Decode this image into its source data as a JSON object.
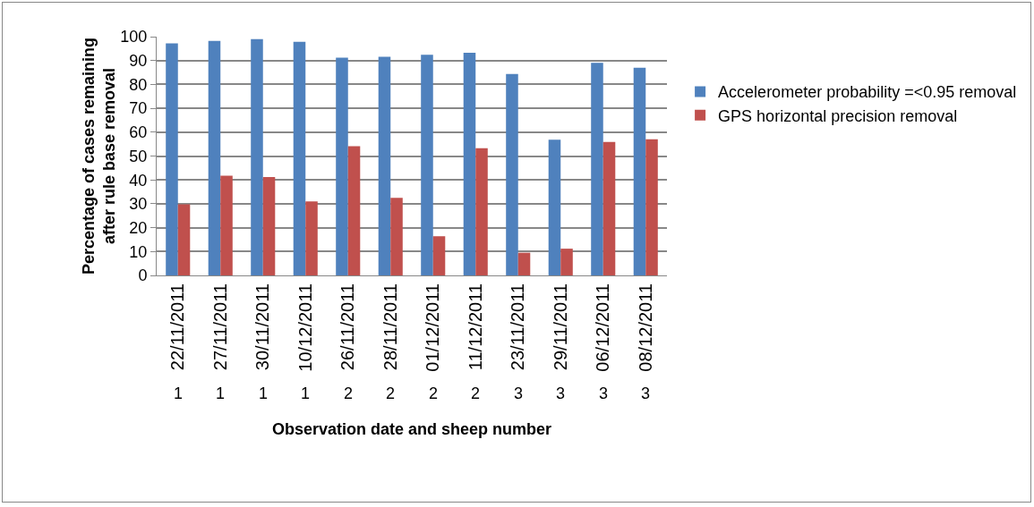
{
  "chart_data": {
    "type": "bar",
    "xlabel": "Observation date and sheep number",
    "ylabel": "Percentage of cases remaining after rule base removal",
    "categories": [
      "22/11/2011",
      "27/11/2011",
      "30/11/2011",
      "10/12/2011",
      "26/11/2011",
      "28/11/2011",
      "01/12/2011",
      "11/12/2011",
      "23/11/2011",
      "29/11/2011",
      "06/12/2011",
      "08/12/2011"
    ],
    "annotations": [
      "1",
      "1",
      "1",
      "1",
      "2",
      "2",
      "2",
      "2",
      "3",
      "3",
      "3",
      "3"
    ],
    "series": [
      {
        "name": "Accelerometer probability =<0.95 removal",
        "color": "#4f81bd",
        "values": [
          97.2,
          98.2,
          99,
          97.8,
          91.2,
          91.6,
          92.4,
          93.3,
          84.4,
          56.8,
          89,
          87
        ]
      },
      {
        "name": "GPS horizontal precision removal",
        "color": "#c0504d",
        "values": [
          29.8,
          41.8,
          41.2,
          31,
          54.1,
          32.5,
          16.4,
          53.3,
          9.5,
          11.2,
          55.9,
          57
        ]
      }
    ],
    "ylim": [
      0,
      100
    ],
    "yticks": [
      0,
      10,
      20,
      30,
      40,
      50,
      60,
      70,
      80,
      90,
      100
    ],
    "grid": "y",
    "legend": "right"
  }
}
